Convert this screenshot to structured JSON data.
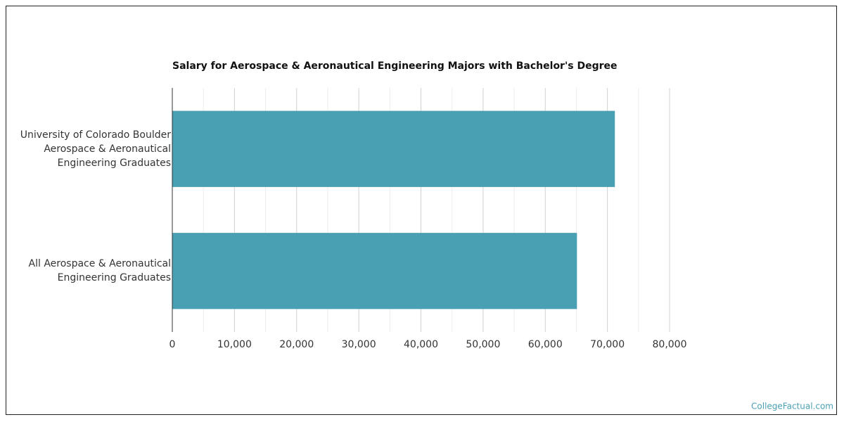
{
  "chart_data": {
    "type": "bar",
    "orientation": "horizontal",
    "title": "Salary for Aerospace & Aeronautical Engineering Majors with Bachelor's Degree",
    "categories": [
      "University of Colorado Boulder Aerospace & Aeronautical Engineering Graduates",
      "All Aerospace & Aeronautical Engineering Graduates"
    ],
    "values": [
      71200,
      65100
    ],
    "color": "#4aa0b3",
    "xlim": [
      0,
      80000
    ],
    "xticks": [
      0,
      {
        "value": 10000,
        "label": "10,000"
      },
      {
        "value": 20000,
        "label": "20,000"
      },
      {
        "value": 30000,
        "label": "30,000"
      },
      {
        "value": 40000,
        "label": "40,000"
      },
      {
        "value": 50000,
        "label": "50,000"
      },
      {
        "value": 60000,
        "label": "60,000"
      },
      {
        "value": 70000,
        "label": "70,000"
      },
      {
        "value": 80000,
        "label": "80,000"
      }
    ],
    "grid": true,
    "source": "CollegeFactual.com"
  }
}
